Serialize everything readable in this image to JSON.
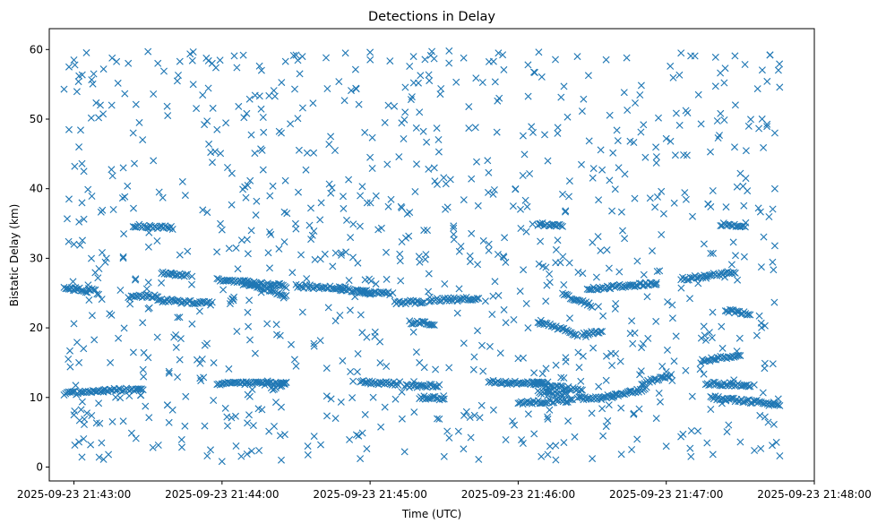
{
  "chart_data": {
    "type": "scatter",
    "title": "Detections in Delay",
    "xlabel": "Time (UTC)",
    "ylabel": "Bistatic Delay (km)",
    "marker": "x",
    "colors": {
      "marker": "#1f77b4",
      "axis": "#000000",
      "background": "#ffffff"
    },
    "grid": false,
    "x_axis": {
      "type": "time",
      "range": [
        "2025-09-23 21:42:50",
        "2025-09-23 21:48:00"
      ],
      "ticks": [
        "2025-09-23 21:43:00",
        "2025-09-23 21:44:00",
        "2025-09-23 21:45:00",
        "2025-09-23 21:46:00",
        "2025-09-23 21:47:00",
        "2025-09-23 21:48:00"
      ]
    },
    "y_axis": {
      "range": [
        -2,
        63
      ],
      "ticks": [
        0,
        10,
        20,
        30,
        40,
        50,
        60
      ]
    },
    "series": [
      {
        "x_range": [
          "2025-09-23 21:42:56",
          "2025-09-23 21:47:46"
        ],
        "tracks": [
          {
            "start": "2025-09-23 21:42:56",
            "end": "2025-09-23 21:43:06",
            "y_start": 25.8,
            "y_end": 25.3
          },
          {
            "start": "2025-09-23 21:43:06",
            "end": "2025-09-23 21:43:10",
            "y_start": 25.6,
            "y_end": 25.0
          },
          {
            "start": "2025-09-23 21:42:56",
            "end": "2025-09-23 21:43:12",
            "y_start": 10.5,
            "y_end": 11.0
          },
          {
            "start": "2025-09-23 21:43:22",
            "end": "2025-09-23 21:43:34",
            "y_start": 24.4,
            "y_end": 24.6
          },
          {
            "start": "2025-09-23 21:43:12",
            "end": "2025-09-23 21:43:28",
            "y_start": 11.0,
            "y_end": 11.2
          },
          {
            "start": "2025-09-23 21:43:24",
            "end": "2025-09-23 21:43:40",
            "y_start": 34.7,
            "y_end": 34.4
          },
          {
            "start": "2025-09-23 21:43:36",
            "end": "2025-09-23 21:43:46",
            "y_start": 27.8,
            "y_end": 27.6
          },
          {
            "start": "2025-09-23 21:43:34",
            "end": "2025-09-23 21:43:56",
            "y_start": 24.0,
            "y_end": 23.5
          },
          {
            "start": "2025-09-23 21:43:58",
            "end": "2025-09-23 21:44:26",
            "y_start": 27.0,
            "y_end": 26.0
          },
          {
            "start": "2025-09-23 21:44:08",
            "end": "2025-09-23 21:44:26",
            "y_start": 26.5,
            "y_end": 24.6
          },
          {
            "start": "2025-09-23 21:43:58",
            "end": "2025-09-23 21:44:18",
            "y_start": 12.0,
            "y_end": 12.0
          },
          {
            "start": "2025-09-23 21:44:18",
            "end": "2025-09-23 21:44:26",
            "y_start": 12.0,
            "y_end": 12.1
          },
          {
            "start": "2025-09-23 21:44:20",
            "end": "2025-09-23 21:44:26",
            "y_start": 11.2,
            "y_end": 12.2
          },
          {
            "start": "2025-09-23 21:44:30",
            "end": "2025-09-23 21:44:50",
            "y_start": 26.0,
            "y_end": 25.7
          },
          {
            "start": "2025-09-23 21:44:48",
            "end": "2025-09-23 21:45:00",
            "y_start": 25.6,
            "y_end": 25.0
          },
          {
            "start": "2025-09-23 21:44:56",
            "end": "2025-09-23 21:45:08",
            "y_start": 25.2,
            "y_end": 25.0
          },
          {
            "start": "2025-09-23 21:44:56",
            "end": "2025-09-23 21:45:12",
            "y_start": 12.2,
            "y_end": 12.0
          },
          {
            "start": "2025-09-23 21:45:10",
            "end": "2025-09-23 21:45:22",
            "y_start": 23.6,
            "y_end": 23.8
          },
          {
            "start": "2025-09-23 21:45:16",
            "end": "2025-09-23 21:45:26",
            "y_start": 20.8,
            "y_end": 20.6
          },
          {
            "start": "2025-09-23 21:45:14",
            "end": "2025-09-23 21:45:28",
            "y_start": 11.6,
            "y_end": 11.7
          },
          {
            "start": "2025-09-23 21:45:20",
            "end": "2025-09-23 21:45:30",
            "y_start": 10.0,
            "y_end": 9.8
          },
          {
            "start": "2025-09-23 21:45:24",
            "end": "2025-09-23 21:45:44",
            "y_start": 24.0,
            "y_end": 24.2
          },
          {
            "start": "2025-09-23 21:45:48",
            "end": "2025-09-23 21:46:12",
            "y_start": 12.2,
            "y_end": 12.0
          },
          {
            "start": "2025-09-23 21:46:00",
            "end": "2025-09-23 21:46:22",
            "y_start": 9.2,
            "y_end": 9.6
          },
          {
            "start": "2025-09-23 21:46:06",
            "end": "2025-09-23 21:46:26",
            "y_start": 12.0,
            "y_end": 11.0
          },
          {
            "start": "2025-09-23 21:46:08",
            "end": "2025-09-23 21:46:20",
            "y_start": 10.8,
            "y_end": 10.4
          },
          {
            "start": "2025-09-23 21:46:08",
            "end": "2025-09-23 21:46:18",
            "y_start": 34.9,
            "y_end": 34.6
          },
          {
            "start": "2025-09-23 21:46:08",
            "end": "2025-09-23 21:46:24",
            "y_start": 21.0,
            "y_end": 19.0
          },
          {
            "start": "2025-09-23 21:46:18",
            "end": "2025-09-23 21:46:30",
            "y_start": 24.8,
            "y_end": 23.2
          },
          {
            "start": "2025-09-23 21:46:26",
            "end": "2025-09-23 21:46:34",
            "y_start": 19.0,
            "y_end": 19.6
          },
          {
            "start": "2025-09-23 21:46:24",
            "end": "2025-09-23 21:46:40",
            "y_start": 9.8,
            "y_end": 10.2
          },
          {
            "start": "2025-09-23 21:46:28",
            "end": "2025-09-23 21:46:56",
            "y_start": 25.6,
            "y_end": 26.4
          },
          {
            "start": "2025-09-23 21:46:38",
            "end": "2025-09-23 21:46:52",
            "y_start": 10.2,
            "y_end": 11.2
          },
          {
            "start": "2025-09-23 21:46:50",
            "end": "2025-09-23 21:47:02",
            "y_start": 12.0,
            "y_end": 13.2
          },
          {
            "start": "2025-09-23 21:47:06",
            "end": "2025-09-23 21:47:28",
            "y_start": 27.0,
            "y_end": 28.0
          },
          {
            "start": "2025-09-23 21:47:14",
            "end": "2025-09-23 21:47:30",
            "y_start": 15.2,
            "y_end": 16.2
          },
          {
            "start": "2025-09-23 21:47:16",
            "end": "2025-09-23 21:47:34",
            "y_start": 12.0,
            "y_end": 11.8
          },
          {
            "start": "2025-09-23 21:47:18",
            "end": "2025-09-23 21:47:46",
            "y_start": 10.0,
            "y_end": 9.0
          },
          {
            "start": "2025-09-23 21:47:22",
            "end": "2025-09-23 21:47:32",
            "y_start": 34.9,
            "y_end": 34.6
          },
          {
            "start": "2025-09-23 21:47:24",
            "end": "2025-09-23 21:47:34",
            "y_start": 22.5,
            "y_end": 22.0
          }
        ],
        "points": [
          [
            "2025-09-23 21:42:56",
            54.3
          ],
          [
            "2025-09-23 21:42:58",
            57.5
          ],
          [
            "2025-09-23 21:43:00",
            58.5
          ],
          [
            "2025-09-23 21:43:08",
            56.5
          ],
          [
            "2025-09-23 21:43:12",
            57.2
          ],
          [
            "2025-09-23 21:43:22",
            58.0
          ],
          [
            "2025-09-23 21:43:30",
            59.7
          ],
          [
            "2025-09-23 21:43:34",
            58.0
          ],
          [
            "2025-09-23 21:43:48",
            58.4
          ],
          [
            "2025-09-23 21:43:56",
            58.0
          ],
          [
            "2025-09-23 21:44:06",
            57.4
          ],
          [
            "2025-09-23 21:44:16",
            57.0
          ],
          [
            "2025-09-23 21:44:30",
            59.2
          ],
          [
            "2025-09-23 21:44:50",
            59.5
          ],
          [
            "2025-09-23 21:45:00",
            59.6
          ],
          [
            "2025-09-23 21:45:16",
            57.6
          ],
          [
            "2025-09-23 21:45:32",
            59.8
          ],
          [
            "2025-09-23 21:45:52",
            59.5
          ],
          [
            "2025-09-23 21:46:04",
            57.8
          ],
          [
            "2025-09-23 21:46:24",
            59.0
          ],
          [
            "2025-09-23 21:46:44",
            58.8
          ],
          [
            "2025-09-23 21:47:06",
            59.5
          ],
          [
            "2025-09-23 21:47:20",
            58.9
          ],
          [
            "2025-09-23 21:47:42",
            59.2
          ],
          [
            "2025-09-23 21:42:58",
            48.5
          ],
          [
            "2025-09-23 21:43:02",
            46.0
          ],
          [
            "2025-09-23 21:43:10",
            50.2
          ],
          [
            "2025-09-23 21:43:24",
            48.0
          ],
          [
            "2025-09-23 21:43:38",
            50.5
          ],
          [
            "2025-09-23 21:43:58",
            48.5
          ],
          [
            "2025-09-23 21:44:10",
            50.8
          ],
          [
            "2025-09-23 21:44:24",
            48.0
          ],
          [
            "2025-09-23 21:44:44",
            47.5
          ],
          [
            "2025-09-23 21:45:06",
            49.5
          ],
          [
            "2025-09-23 21:45:20",
            51.0
          ],
          [
            "2025-09-23 21:45:40",
            48.7
          ],
          [
            "2025-09-23 21:46:02",
            47.6
          ],
          [
            "2025-09-23 21:46:20",
            50.3
          ],
          [
            "2025-09-23 21:46:40",
            48.4
          ],
          [
            "2025-09-23 21:47:00",
            47.2
          ],
          [
            "2025-09-23 21:47:22",
            50.8
          ],
          [
            "2025-09-23 21:47:44",
            48.0
          ],
          [
            "2025-09-23 21:43:04",
            42.5
          ],
          [
            "2025-09-23 21:43:20",
            43.0
          ],
          [
            "2025-09-23 21:43:44",
            41.0
          ],
          [
            "2025-09-23 21:44:04",
            42.2
          ],
          [
            "2025-09-23 21:44:34",
            42.7
          ],
          [
            "2025-09-23 21:45:00",
            44.5
          ],
          [
            "2025-09-23 21:45:26",
            43.0
          ],
          [
            "2025-09-23 21:45:48",
            42.3
          ],
          [
            "2025-09-23 21:46:12",
            44.0
          ],
          [
            "2025-09-23 21:46:34",
            42.7
          ],
          [
            "2025-09-23 21:46:56",
            43.7
          ],
          [
            "2025-09-23 21:47:30",
            42.2
          ],
          [
            "2025-09-23 21:42:58",
            38.5
          ],
          [
            "2025-09-23 21:43:16",
            37.0
          ],
          [
            "2025-09-23 21:43:36",
            38.7
          ],
          [
            "2025-09-23 21:43:54",
            36.6
          ],
          [
            "2025-09-23 21:44:14",
            38.2
          ],
          [
            "2025-09-23 21:44:36",
            37.2
          ],
          [
            "2025-09-23 21:44:56",
            39.0
          ],
          [
            "2025-09-23 21:45:16",
            36.6
          ],
          [
            "2025-09-23 21:45:38",
            38.4
          ],
          [
            "2025-09-23 21:45:58",
            37.5
          ],
          [
            "2025-09-23 21:46:18",
            39.2
          ],
          [
            "2025-09-23 21:46:38",
            36.8
          ],
          [
            "2025-09-23 21:46:58",
            39.6
          ],
          [
            "2025-09-23 21:47:18",
            37.4
          ],
          [
            "2025-09-23 21:47:44",
            40.0
          ],
          [
            "2025-09-23 21:43:00",
            32.0
          ],
          [
            "2025-09-23 21:43:20",
            30.2
          ],
          [
            "2025-09-23 21:43:46",
            31.0
          ],
          [
            "2025-09-23 21:44:08",
            32.6
          ],
          [
            "2025-09-23 21:44:32",
            30.5
          ],
          [
            "2025-09-23 21:44:52",
            33.0
          ],
          [
            "2025-09-23 21:45:12",
            30.6
          ],
          [
            "2025-09-23 21:45:34",
            32.7
          ],
          [
            "2025-09-23 21:45:54",
            30.3
          ],
          [
            "2025-09-23 21:46:16",
            32.6
          ],
          [
            "2025-09-23 21:46:36",
            31.2
          ],
          [
            "2025-09-23 21:46:58",
            33.4
          ],
          [
            "2025-09-23 21:47:18",
            30.7
          ],
          [
            "2025-09-23 21:47:44",
            31.8
          ],
          [
            "2025-09-23 21:43:00",
            20.6
          ],
          [
            "2025-09-23 21:43:18",
            18.5
          ],
          [
            "2025-09-23 21:43:42",
            21.5
          ],
          [
            "2025-09-23 21:44:06",
            19.5
          ],
          [
            "2025-09-23 21:44:28",
            17.6
          ],
          [
            "2025-09-23 21:44:46",
            21.0
          ],
          [
            "2025-09-23 21:45:04",
            18.0
          ],
          [
            "2025-09-23 21:45:38",
            17.8
          ],
          [
            "2025-09-23 21:46:04",
            20.0
          ],
          [
            "2025-09-23 21:46:46",
            21.0
          ],
          [
            "2025-09-23 21:47:04",
            18.8
          ],
          [
            "2025-09-23 21:47:40",
            20.3
          ],
          [
            "2025-09-23 21:43:02",
            15.0
          ],
          [
            "2025-09-23 21:43:28",
            14.0
          ],
          [
            "2025-09-23 21:43:52",
            15.5
          ],
          [
            "2025-09-23 21:44:30",
            14.5
          ],
          [
            "2025-09-23 21:44:52",
            13.7
          ],
          [
            "2025-09-23 21:45:20",
            15.0
          ],
          [
            "2025-09-23 21:45:42",
            14.0
          ],
          [
            "2025-09-23 21:46:00",
            15.6
          ],
          [
            "2025-09-23 21:46:38",
            14.6
          ],
          [
            "2025-09-23 21:47:00",
            13.7
          ],
          [
            "2025-09-23 21:47:40",
            14.9
          ],
          [
            "2025-09-23 21:43:00",
            7.5
          ],
          [
            "2025-09-23 21:43:20",
            6.6
          ],
          [
            "2025-09-23 21:43:40",
            8.2
          ],
          [
            "2025-09-23 21:44:02",
            7.2
          ],
          [
            "2025-09-23 21:44:24",
            8.6
          ],
          [
            "2025-09-23 21:44:46",
            7.0
          ],
          [
            "2025-09-23 21:45:06",
            8.6
          ],
          [
            "2025-09-23 21:45:28",
            6.9
          ],
          [
            "2025-09-23 21:45:50",
            8.2
          ],
          [
            "2025-09-23 21:46:12",
            6.9
          ],
          [
            "2025-09-23 21:46:34",
            8.4
          ],
          [
            "2025-09-23 21:46:56",
            7.0
          ],
          [
            "2025-09-23 21:47:18",
            8.3
          ],
          [
            "2025-09-23 21:47:40",
            7.2
          ],
          [
            "2025-09-23 21:43:02",
            3.6
          ],
          [
            "2025-09-23 21:43:14",
            1.8
          ],
          [
            "2025-09-23 21:43:32",
            2.8
          ],
          [
            "2025-09-23 21:43:54",
            1.6
          ],
          [
            "2025-09-23 21:44:00",
            0.8
          ],
          [
            "2025-09-23 21:44:12",
            2.3
          ],
          [
            "2025-09-23 21:44:24",
            1.0
          ],
          [
            "2025-09-23 21:44:40",
            3.2
          ],
          [
            "2025-09-23 21:44:56",
            1.2
          ],
          [
            "2025-09-23 21:45:14",
            2.2
          ],
          [
            "2025-09-23 21:45:30",
            1.5
          ],
          [
            "2025-09-23 21:45:44",
            1.1
          ],
          [
            "2025-09-23 21:46:02",
            3.4
          ],
          [
            "2025-09-23 21:46:12",
            1.8
          ],
          [
            "2025-09-23 21:46:30",
            1.2
          ],
          [
            "2025-09-23 21:46:46",
            2.5
          ],
          [
            "2025-09-23 21:47:00",
            3.0
          ],
          [
            "2025-09-23 21:47:10",
            1.5
          ],
          [
            "2025-09-23 21:47:30",
            3.6
          ],
          [
            "2025-09-23 21:47:46",
            1.6
          ]
        ],
        "noise_count": 820
      }
    ]
  }
}
